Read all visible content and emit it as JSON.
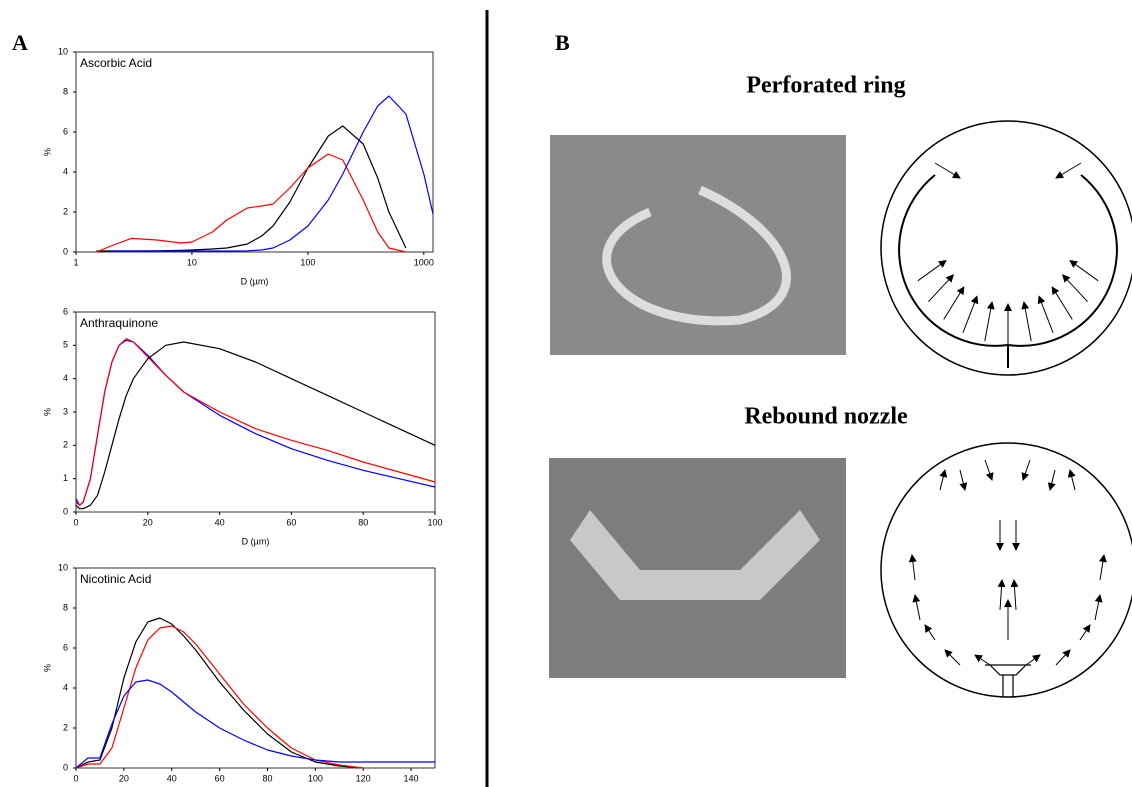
{
  "chart_data": [
    {
      "type": "line",
      "title": "Ascorbic Acid",
      "x_label": "D (µm)",
      "y_label": "%",
      "xscale": "log",
      "xlim": [
        1,
        1200
      ],
      "xticks": [
        1,
        10,
        100,
        1000
      ],
      "ylim": [
        0,
        10
      ],
      "yticks": [
        0,
        2,
        4,
        6,
        8,
        10
      ],
      "x": [
        1.5,
        2,
        3,
        5,
        8,
        10,
        15,
        20,
        30,
        40,
        50,
        70,
        100,
        150,
        200,
        300,
        400,
        500,
        700,
        1000,
        1200
      ],
      "series": [
        {
          "color": "#000000",
          "values": [
            0.05,
            0.05,
            0.05,
            0.06,
            0.08,
            0.1,
            0.15,
            0.2,
            0.4,
            0.8,
            1.3,
            2.5,
            4.2,
            5.8,
            6.3,
            5.4,
            3.7,
            2.0,
            0.2,
            null,
            null
          ]
        },
        {
          "color": "#ff0000",
          "values": [
            0,
            0.3,
            0.68,
            0.6,
            0.45,
            0.5,
            1.0,
            1.6,
            2.2,
            2.3,
            2.4,
            3.2,
            4.2,
            4.9,
            4.6,
            2.6,
            1.0,
            0.2,
            0,
            null,
            null
          ]
        },
        {
          "color": "#0000ff",
          "values": [
            null,
            0.05,
            0.05,
            0.05,
            0.05,
            0.05,
            0.05,
            0.05,
            0.06,
            0.1,
            0.2,
            0.6,
            1.3,
            2.6,
            3.9,
            6.0,
            7.3,
            7.8,
            6.9,
            3.9,
            1.9
          ]
        }
      ]
    },
    {
      "type": "line",
      "title": "Anthraquinone",
      "x_label": "D (µm)",
      "y_label": "%",
      "xlim": [
        0,
        100
      ],
      "xticks": [
        0,
        20,
        40,
        60,
        80,
        100
      ],
      "ylim": [
        0,
        6
      ],
      "yticks": [
        0,
        1,
        2,
        3,
        4,
        5,
        6
      ],
      "x": [
        0,
        1,
        2,
        4,
        6,
        8,
        10,
        12,
        14,
        16,
        20,
        25,
        30,
        40,
        50,
        60,
        70,
        80,
        90,
        100
      ],
      "series": [
        {
          "color": "#0000ff",
          "values": [
            0.4,
            0.2,
            0.3,
            1.0,
            2.3,
            3.6,
            4.5,
            5.0,
            5.15,
            5.1,
            4.7,
            4.1,
            3.6,
            2.9,
            2.35,
            1.9,
            1.55,
            1.25,
            1.0,
            0.75
          ]
        },
        {
          "color": "#ff0000",
          "values": [
            0.3,
            0.2,
            0.3,
            1.0,
            2.3,
            3.6,
            4.5,
            5.0,
            5.2,
            5.1,
            4.65,
            4.1,
            3.6,
            3.0,
            2.5,
            2.15,
            1.85,
            1.5,
            1.2,
            0.9
          ]
        },
        {
          "color": "#000000",
          "values": [
            0.2,
            0.1,
            0.1,
            0.2,
            0.5,
            1.2,
            2.0,
            2.8,
            3.5,
            4.0,
            4.6,
            5.0,
            5.1,
            4.9,
            4.5,
            4.0,
            3.5,
            3.0,
            2.5,
            2.0
          ]
        }
      ]
    },
    {
      "type": "line",
      "title": "Nicotinic Acid",
      "y_label": "%",
      "xlim": [
        0,
        150
      ],
      "xticks": [
        0,
        20,
        40,
        60,
        80,
        100,
        120,
        140
      ],
      "ylim": [
        0,
        10
      ],
      "yticks": [
        0,
        2,
        4,
        6,
        8,
        10
      ],
      "x": [
        0,
        5,
        10,
        15,
        20,
        25,
        30,
        35,
        40,
        45,
        50,
        60,
        70,
        80,
        90,
        100,
        110,
        120,
        130,
        140,
        150
      ],
      "series": [
        {
          "color": "#000000",
          "values": [
            0,
            0.3,
            0.4,
            2.0,
            4.5,
            6.3,
            7.3,
            7.5,
            7.2,
            6.6,
            5.9,
            4.3,
            2.9,
            1.7,
            0.8,
            0.3,
            0.1,
            0,
            null,
            null,
            null
          ]
        },
        {
          "color": "#ff0000",
          "values": [
            0,
            0.2,
            0.2,
            1.0,
            3.0,
            5.0,
            6.4,
            7.0,
            7.1,
            6.8,
            6.2,
            4.7,
            3.2,
            2.0,
            1.0,
            0.4,
            0.15,
            0,
            null,
            null,
            null
          ]
        },
        {
          "color": "#0000ff",
          "values": [
            0,
            0.5,
            0.5,
            2.2,
            3.6,
            4.3,
            4.4,
            4.2,
            3.8,
            3.3,
            2.8,
            2.0,
            1.4,
            0.9,
            0.6,
            0.4,
            0.3,
            0.3,
            0.3,
            0.3,
            0.3
          ]
        }
      ]
    }
  ],
  "panels": {
    "a": "A",
    "b": "B"
  },
  "diagrams": [
    {
      "title": "Perforated ring",
      "color": "#1f6fbf"
    },
    {
      "title": "Rebound nozzle",
      "color": "#ff0000"
    }
  ]
}
